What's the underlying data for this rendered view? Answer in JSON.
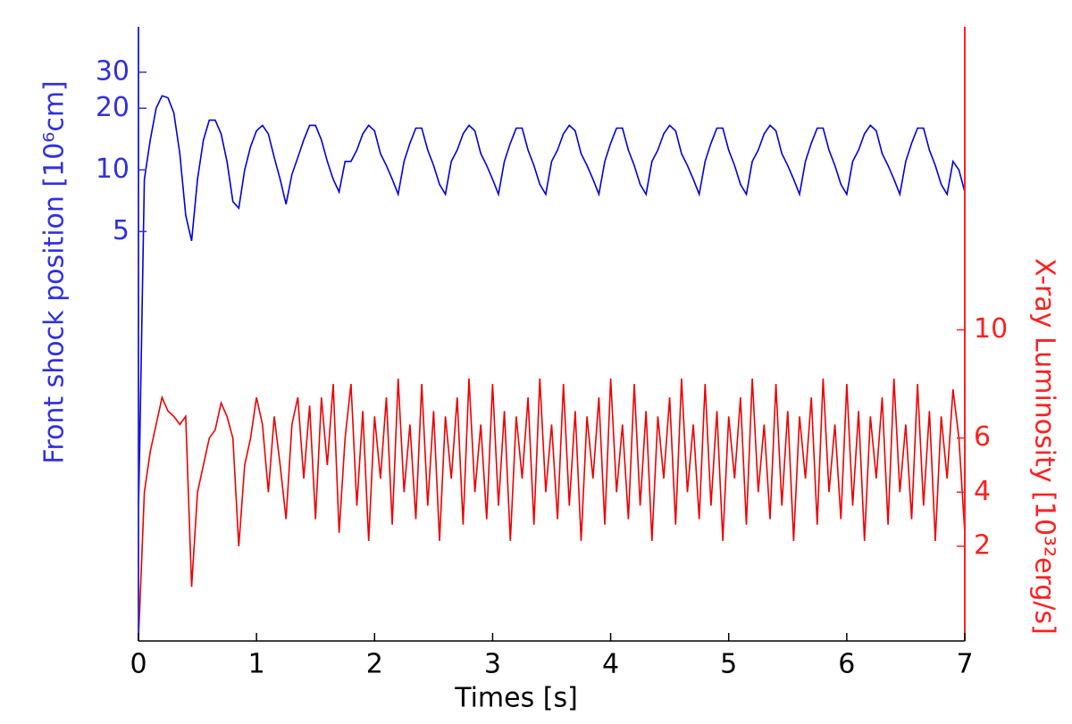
{
  "chart_data": {
    "type": "line",
    "x_label": "Times [s]",
    "y_label": "Front shock position [10⁶cm]",
    "y2_label": "X-ray Luminosity [10³²erg/s]",
    "xlim": [
      0,
      7
    ],
    "xticks": [
      0,
      1,
      2,
      3,
      4,
      5,
      6,
      7
    ],
    "ylim": [
      0.05,
      50
    ],
    "yticks": [
      5,
      10,
      20,
      30
    ],
    "ylog": true,
    "y2lim": [
      -1.5,
      21.2
    ],
    "y2ticks": [
      2,
      4,
      6,
      10
    ],
    "y_color": "#3030e0",
    "y2_color": "#ff2020",
    "x": [
      0,
      0.05,
      0.1,
      0.15,
      0.2,
      0.25,
      0.3,
      0.35,
      0.4,
      0.45,
      0.5,
      0.55,
      0.6,
      0.65,
      0.7,
      0.75,
      0.8,
      0.85,
      0.9,
      0.95,
      1,
      1.05,
      1.1,
      1.15,
      1.2,
      1.25,
      1.3,
      1.35,
      1.4,
      1.45,
      1.5,
      1.55,
      1.6,
      1.65,
      1.7,
      1.75,
      1.8,
      1.85,
      1.9,
      1.95,
      2,
      2.05,
      2.1,
      2.15,
      2.2,
      2.25,
      2.3,
      2.35,
      2.4,
      2.45,
      2.5,
      2.55,
      2.6,
      2.65,
      2.7,
      2.75,
      2.8,
      2.85,
      2.9,
      2.95,
      3,
      3.05,
      3.1,
      3.15,
      3.2,
      3.25,
      3.3,
      3.35,
      3.4,
      3.45,
      3.5,
      3.55,
      3.6,
      3.65,
      3.7,
      3.75,
      3.8,
      3.85,
      3.9,
      3.95,
      4,
      4.05,
      4.1,
      4.15,
      4.2,
      4.25,
      4.3,
      4.35,
      4.4,
      4.45,
      4.5,
      4.55,
      4.6,
      4.65,
      4.7,
      4.75,
      4.8,
      4.85,
      4.9,
      4.95,
      5,
      5.05,
      5.1,
      5.15,
      5.2,
      5.25,
      5.3,
      5.35,
      5.4,
      5.45,
      5.5,
      5.55,
      5.6,
      5.65,
      5.7,
      5.75,
      5.8,
      5.85,
      5.9,
      5.95,
      6,
      6.05,
      6.1,
      6.15,
      6.2,
      6.25,
      6.3,
      6.35,
      6.4,
      6.45,
      6.5,
      6.55,
      6.6,
      6.65,
      6.7,
      6.75,
      6.8,
      6.85,
      6.9,
      6.95,
      7
    ],
    "series": [
      {
        "axis": "y",
        "color": "#0000dd",
        "values": [
          0.2,
          9,
          14,
          20,
          23,
          22.5,
          19,
          12,
          6,
          4.5,
          9,
          14,
          17.5,
          17.5,
          15,
          11,
          7,
          6.5,
          10,
          13,
          15.5,
          16.5,
          15,
          11.5,
          9,
          6.8,
          9.5,
          11.5,
          14,
          16.5,
          16.5,
          14,
          11,
          9,
          7.8,
          11,
          11,
          12.5,
          15,
          16.5,
          15.5,
          12,
          10.5,
          9,
          7.6,
          11,
          13.5,
          16,
          16,
          12.5,
          10.5,
          8.5,
          7.6,
          11,
          12.5,
          15,
          16.5,
          15.5,
          12,
          10.5,
          9,
          7.6,
          11,
          13.5,
          16,
          16,
          12.5,
          10.5,
          8.5,
          7.6,
          11,
          12.5,
          15,
          16.5,
          15.5,
          12,
          10.5,
          9,
          7.6,
          11,
          13.5,
          16,
          16,
          12.5,
          10.5,
          8.5,
          7.6,
          11,
          12.5,
          15,
          16.5,
          15.5,
          12,
          10.5,
          9,
          7.6,
          11,
          13.5,
          16,
          16,
          12.5,
          10.5,
          8.5,
          7.6,
          11,
          12.5,
          15,
          16.5,
          15.5,
          12,
          10.5,
          9,
          7.6,
          11,
          13.5,
          16,
          16,
          12.5,
          10.5,
          8.5,
          7.6,
          11,
          12.5,
          15,
          16.5,
          15.5,
          12,
          10.5,
          9,
          7.6,
          11,
          13.5,
          16,
          16,
          12.5,
          10.5,
          8.5,
          7.6,
          11,
          10,
          7.8
        ]
      },
      {
        "axis": "y2",
        "color": "#ee0000",
        "values": [
          -1.5,
          4,
          5.5,
          6.5,
          7.5,
          7,
          6.8,
          6.5,
          6.8,
          0.5,
          4,
          5,
          6,
          6.3,
          7.3,
          6.8,
          6,
          2,
          5,
          6,
          7.5,
          6.5,
          4,
          6.8,
          5,
          3,
          6.5,
          7.5,
          4.5,
          7.2,
          3,
          7.5,
          5,
          8,
          2.5,
          6,
          8,
          3.5,
          7,
          2.2,
          6.8,
          4.5,
          7.5,
          2.8,
          8.2,
          4,
          6.5,
          3,
          8,
          3.5,
          7,
          2.2,
          6.8,
          4.5,
          7.5,
          2.8,
          8.2,
          4,
          6.5,
          3,
          8,
          3.5,
          7,
          2.2,
          6.8,
          4.5,
          7.5,
          2.8,
          8.2,
          4,
          6.5,
          3,
          8,
          3.5,
          7,
          2.2,
          6.8,
          4.5,
          7.5,
          2.8,
          8.2,
          4,
          6.5,
          3,
          8,
          3.5,
          7,
          2.2,
          6.8,
          4.5,
          7.5,
          2.8,
          8.2,
          4,
          6.5,
          3,
          8,
          3.5,
          7,
          2.2,
          6.8,
          4.5,
          7.5,
          2.8,
          8.2,
          4,
          6.5,
          3,
          8,
          3.5,
          7,
          2.2,
          6.8,
          4.5,
          7.5,
          2.8,
          8.2,
          4,
          6.5,
          3,
          8,
          3.5,
          7,
          2.2,
          6.8,
          4.5,
          7.5,
          2.8,
          8.2,
          4,
          6.5,
          3,
          8,
          3.5,
          7,
          2.2,
          6.8,
          4.5,
          7.8,
          6,
          2.5
        ]
      }
    ]
  }
}
